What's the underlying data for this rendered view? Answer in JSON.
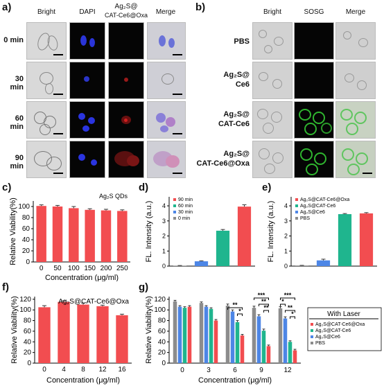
{
  "panel_labels": [
    "a)",
    "b)",
    "c)",
    "d)",
    "e)",
    "f)",
    "g)"
  ],
  "panel_a": {
    "headers": [
      "Bright",
      "DAPI",
      "Ag₂S@",
      "CAT-Ce6@Oxa",
      "Merge"
    ],
    "rows": [
      "0 min",
      "30 min",
      "60 min",
      "90 min"
    ]
  },
  "panel_b": {
    "headers": [
      "Bright",
      "SOSG",
      "Merge"
    ],
    "rows": [
      {
        "line1": "PBS",
        "line2": ""
      },
      {
        "line1": "Ag₂S@",
        "line2": "Ce6"
      },
      {
        "line1": "Ag₂S@",
        "line2": "CAT-Ce6"
      },
      {
        "line1": "Ag₂S@",
        "line2": "CAT-Ce6@Oxa"
      }
    ]
  },
  "colors": {
    "bar_red": "#f24d50",
    "teal": "#1fb58e",
    "blue": "#4d86e6",
    "gray": "#8c8c8c",
    "axis": "#000000"
  },
  "chart_data": [
    {
      "id": "c",
      "type": "bar",
      "categories": [
        "0",
        "50",
        "100",
        "150",
        "200",
        "250"
      ],
      "values": [
        101,
        100,
        97,
        94,
        93,
        92
      ],
      "errors": [
        2,
        2,
        3,
        2,
        2,
        2
      ],
      "xlabel": "Concentration (μg/ml)",
      "ylabel": "Relative Viability(%)",
      "ylim": [
        0,
        110
      ],
      "yticks": [
        0,
        20,
        40,
        60,
        80,
        100
      ],
      "annotation": "Ag₂S QDs"
    },
    {
      "id": "d",
      "type": "bar",
      "categories": [
        "0 min",
        "30 min",
        "60 min",
        "90 min"
      ],
      "values": [
        0.03,
        0.32,
        2.35,
        3.95
      ],
      "errors": [
        0.01,
        0.03,
        0.08,
        0.12
      ],
      "ylabel": "FL. Intensity (a.u.)",
      "ylim": [
        0,
        4.6
      ],
      "yticks": [
        0,
        1,
        2,
        3,
        4
      ],
      "legend": [
        "90 min",
        "60 min",
        "30 min",
        "0 min"
      ]
    },
    {
      "id": "e",
      "type": "bar",
      "categories": [
        "PBS",
        "Ag₂S@Ce6",
        "Ag₂S@CAT-Ce6",
        "Ag₂S@CAT-Ce6@Oxa"
      ],
      "values": [
        0.04,
        0.38,
        3.45,
        3.5
      ],
      "errors": [
        0.01,
        0.08,
        0.04,
        0.05
      ],
      "ylabel": "FL. Intensity (a.u.)",
      "ylim": [
        0,
        4.6
      ],
      "yticks": [
        0,
        1,
        2,
        3,
        4
      ],
      "legend": [
        "Ag₂S@CAT-Ce6@Oxa",
        "Ag₂S@CAT-Ce6",
        "Ag₂S@Ce6",
        "PBS"
      ]
    },
    {
      "id": "f",
      "type": "bar",
      "categories": [
        "0",
        "4",
        "8",
        "12",
        "16"
      ],
      "values": [
        105,
        115,
        110,
        107,
        90
      ],
      "errors": [
        3,
        2,
        3,
        2,
        2
      ],
      "xlabel": "Concentration (μg/ml)",
      "ylabel": "Relative Viability(%)",
      "ylim": [
        0,
        125
      ],
      "yticks": [
        0,
        20,
        40,
        60,
        80,
        100,
        120
      ],
      "annotation": "Ag₂S@CAT-Ce6@Oxa"
    },
    {
      "id": "g",
      "type": "bar",
      "categories": [
        "0",
        "3",
        "6",
        "9",
        "12"
      ],
      "series": [
        {
          "name": "PBS",
          "values": [
            116,
            113,
            108,
            104,
            103
          ],
          "errors": [
            2,
            2,
            3,
            3,
            3
          ]
        },
        {
          "name": "Ag₂S@Ce6",
          "values": [
            106,
            106,
            97,
            88,
            84
          ],
          "errors": [
            2,
            2,
            3,
            3,
            3
          ]
        },
        {
          "name": "Ag₂S@CAT-Ce6",
          "values": [
            104,
            102,
            77,
            61,
            40
          ],
          "errors": [
            2,
            2,
            3,
            3,
            2
          ]
        },
        {
          "name": "Ag₂S@CAT-Ce6@Oxa",
          "values": [
            106,
            80,
            52,
            32,
            24
          ],
          "errors": [
            2,
            2,
            2,
            2,
            2
          ]
        }
      ],
      "xlabel": "Concentration (μg/ml)",
      "ylabel": "Relative Viability(%)",
      "ylim": [
        0,
        125
      ],
      "yticks": [
        0,
        20,
        40,
        60,
        80,
        100,
        120
      ],
      "legend_title": "With Laser",
      "legend": [
        "Ag₂S@CAT-Ce6@Oxa",
        "Ag₂S@CAT-Ce6",
        "Ag₂S@Ce6",
        "PBS"
      ],
      "significance": [
        "**",
        "*",
        "***",
        "**",
        "**",
        "***",
        "*",
        "**",
        "*"
      ]
    }
  ]
}
